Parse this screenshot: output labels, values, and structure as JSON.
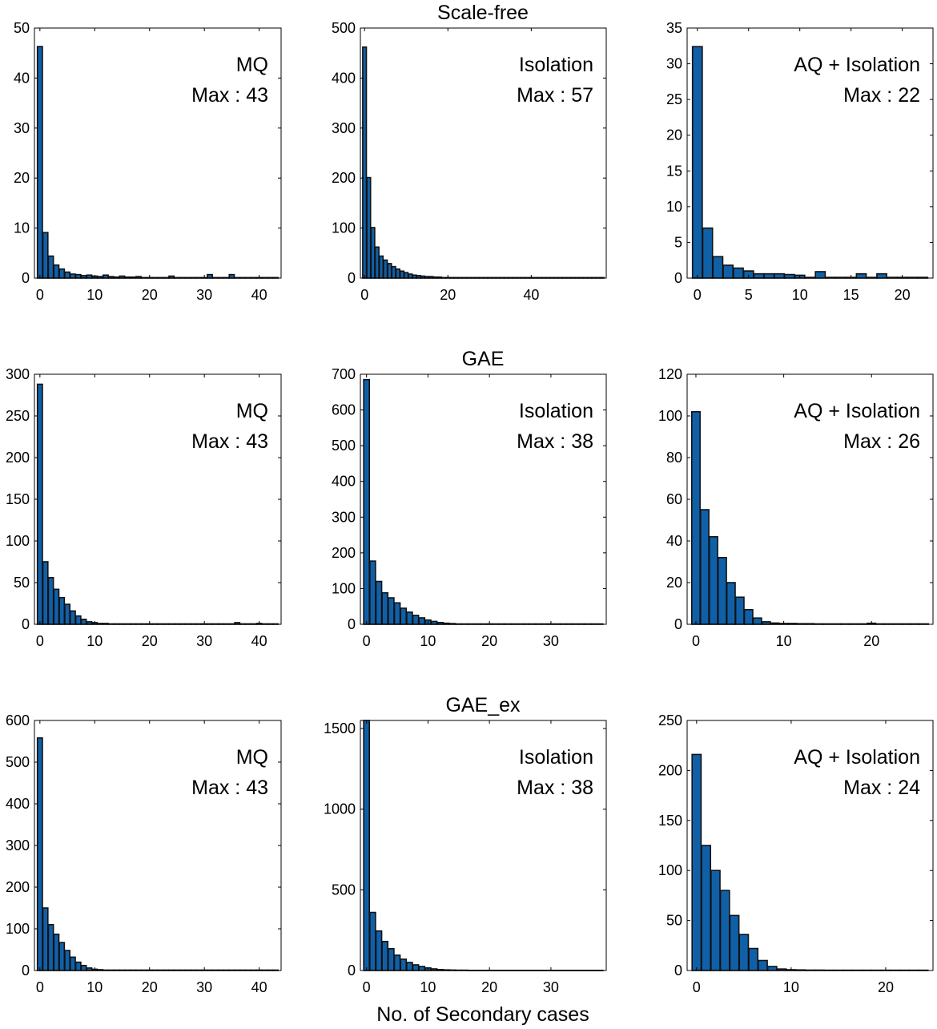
{
  "figure": {
    "row_titles": [
      "Scale-free",
      "GAE",
      "GAE_ex"
    ],
    "xlabel": "No. of Secondary cases",
    "bar_color": "#1060a8",
    "bar_edge_color": "#111111"
  },
  "chart_data": [
    {
      "type": "bar",
      "row": 0,
      "col": 0,
      "title": "Scale-free",
      "label": "MQ",
      "max_label": "Max : 43",
      "xlim": [
        -1,
        44
      ],
      "ylim": [
        0,
        50
      ],
      "xticks": [
        0,
        10,
        20,
        30,
        40
      ],
      "yticks": [
        0,
        10,
        20,
        30,
        40,
        50
      ],
      "values": [
        46.3,
        9.1,
        4.4,
        2.6,
        1.8,
        1.2,
        0.8,
        0.7,
        0.5,
        0.6,
        0.4,
        0.3,
        0.6,
        0.3,
        0.2,
        0.4,
        0.2,
        0.2,
        0.3,
        0.1,
        0.1,
        0.1,
        0.1,
        0.1,
        0.4,
        0.1,
        0.1,
        0.1,
        0.1,
        0.1,
        0.1,
        0.7,
        0.1,
        0.1,
        0.1,
        0.7,
        0.1,
        0.1,
        0.1,
        0.1,
        0.1,
        0.1,
        0.1,
        0.1
      ]
    },
    {
      "type": "bar",
      "row": 0,
      "col": 1,
      "title": "Scale-free",
      "label": "Isolation",
      "max_label": "Max : 57",
      "xlim": [
        -1,
        58
      ],
      "ylim": [
        0,
        500
      ],
      "xticks": [
        0,
        20,
        40
      ],
      "yticks": [
        0,
        100,
        200,
        300,
        400,
        500
      ],
      "values": [
        462,
        201,
        101,
        62,
        44,
        36,
        29,
        23,
        18,
        14,
        11,
        8,
        6,
        5,
        4,
        3,
        3,
        2,
        2,
        1,
        1,
        1,
        1,
        1,
        1,
        1,
        1,
        1,
        1,
        1,
        1,
        1,
        1,
        1,
        1,
        1,
        1,
        1,
        1,
        1,
        1,
        1,
        1,
        1,
        1,
        1,
        1,
        1,
        1,
        1,
        1,
        1,
        1,
        1,
        1,
        1,
        1,
        1
      ]
    },
    {
      "type": "bar",
      "row": 0,
      "col": 2,
      "title": "Scale-free",
      "label": "AQ + Isolation",
      "max_label": "Max : 22",
      "xlim": [
        -1,
        23
      ],
      "ylim": [
        0,
        35
      ],
      "xticks": [
        0,
        5,
        10,
        15,
        20
      ],
      "yticks": [
        0,
        5,
        10,
        15,
        20,
        25,
        30,
        35
      ],
      "values": [
        32.4,
        7,
        3,
        1.8,
        1.4,
        1,
        0.6,
        0.6,
        0.6,
        0.5,
        0.4,
        0.1,
        0.9,
        0.1,
        0.1,
        0.1,
        0.6,
        0.1,
        0.6,
        0.1,
        0.1,
        0.1,
        0.1
      ]
    },
    {
      "type": "bar",
      "row": 1,
      "col": 0,
      "title": "GAE",
      "label": "MQ",
      "max_label": "Max : 43",
      "xlim": [
        -1,
        44
      ],
      "ylim": [
        0,
        300
      ],
      "xticks": [
        0,
        10,
        20,
        30,
        40
      ],
      "yticks": [
        0,
        50,
        100,
        150,
        200,
        250,
        300
      ],
      "values": [
        288,
        75,
        56,
        42,
        32,
        24,
        16,
        10,
        6,
        3,
        2,
        1,
        1,
        0.5,
        0.5,
        0.5,
        0.5,
        0.5,
        0.5,
        0.5,
        0.5,
        0.5,
        0.5,
        0.5,
        0.5,
        0.5,
        0.5,
        0.5,
        0.5,
        0.5,
        0.5,
        0.5,
        0.5,
        0.5,
        0.5,
        0.5,
        2,
        0.5,
        0.5,
        0.5,
        1,
        0.5,
        0.5,
        0.5
      ]
    },
    {
      "type": "bar",
      "row": 1,
      "col": 1,
      "title": "GAE",
      "label": "Isolation",
      "max_label": "Max : 38",
      "xlim": [
        -1,
        39
      ],
      "ylim": [
        0,
        700
      ],
      "xticks": [
        0,
        10,
        20,
        30
      ],
      "yticks": [
        0,
        100,
        200,
        300,
        400,
        500,
        600,
        700
      ],
      "values": [
        685,
        177,
        120,
        88,
        74,
        60,
        45,
        34,
        25,
        18,
        12,
        8,
        5,
        3,
        2,
        1,
        1,
        1,
        1,
        1,
        1,
        1,
        1,
        1,
        1,
        1,
        1,
        1,
        1,
        1,
        1,
        1,
        1,
        1,
        1,
        1,
        1,
        1,
        1
      ]
    },
    {
      "type": "bar",
      "row": 1,
      "col": 2,
      "title": "GAE",
      "label": "AQ + Isolation",
      "max_label": "Max : 26",
      "xlim": [
        -1,
        27
      ],
      "ylim": [
        0,
        120
      ],
      "xticks": [
        0,
        10,
        20
      ],
      "yticks": [
        0,
        20,
        40,
        60,
        80,
        100,
        120
      ],
      "values": [
        102,
        55,
        42,
        32,
        20,
        13,
        7,
        3,
        1.2,
        0.6,
        0.4,
        0.4,
        0.3,
        0.3,
        0.2,
        0.2,
        0.2,
        0.2,
        0.2,
        0.2,
        0.5,
        0.2,
        0.2,
        0.2,
        0.2,
        0.2,
        0.2
      ]
    },
    {
      "type": "bar",
      "row": 2,
      "col": 0,
      "title": "GAE_ex",
      "label": "MQ",
      "max_label": "Max : 43",
      "xlim": [
        -1,
        44
      ],
      "ylim": [
        0,
        600
      ],
      "xticks": [
        0,
        10,
        20,
        30,
        40
      ],
      "yticks": [
        0,
        100,
        200,
        300,
        400,
        500,
        600
      ],
      "values": [
        558,
        150,
        110,
        87,
        67,
        48,
        32,
        20,
        12,
        6,
        3,
        2,
        1,
        1,
        1,
        1,
        1,
        1,
        1,
        1,
        1,
        1,
        1,
        1,
        1,
        1,
        1,
        1,
        1,
        1,
        1,
        1,
        1,
        1,
        1,
        1,
        1,
        1,
        1,
        1,
        1,
        1,
        1,
        1
      ]
    },
    {
      "type": "bar",
      "row": 2,
      "col": 1,
      "title": "GAE_ex",
      "label": "Isolation",
      "max_label": "Max : 38",
      "xlim": [
        -1,
        39
      ],
      "ylim": [
        0,
        1550
      ],
      "xticks": [
        0,
        10,
        20,
        30
      ],
      "yticks": [
        0,
        500,
        1000,
        1500
      ],
      "values": [
        1550,
        360,
        245,
        180,
        135,
        95,
        70,
        50,
        35,
        25,
        16,
        10,
        6,
        4,
        3,
        2,
        2,
        1,
        1,
        1,
        1,
        1,
        1,
        1,
        1,
        1,
        1,
        1,
        1,
        1,
        1,
        1,
        1,
        1,
        1,
        1,
        1,
        1,
        1
      ]
    },
    {
      "type": "bar",
      "row": 2,
      "col": 2,
      "title": "GAE_ex",
      "label": "AQ + Isolation",
      "max_label": "Max : 24",
      "xlim": [
        -1,
        25
      ],
      "ylim": [
        0,
        250
      ],
      "xticks": [
        0,
        10,
        20
      ],
      "yticks": [
        0,
        50,
        100,
        150,
        200,
        250
      ],
      "values": [
        216,
        125,
        100,
        80,
        55,
        36,
        22,
        10,
        4,
        1.5,
        0.8,
        0.6,
        0.4,
        0.4,
        0.3,
        0.3,
        0.3,
        0.3,
        0.3,
        0.3,
        0.3,
        0.3,
        0.3,
        0.3,
        0.3
      ]
    }
  ]
}
